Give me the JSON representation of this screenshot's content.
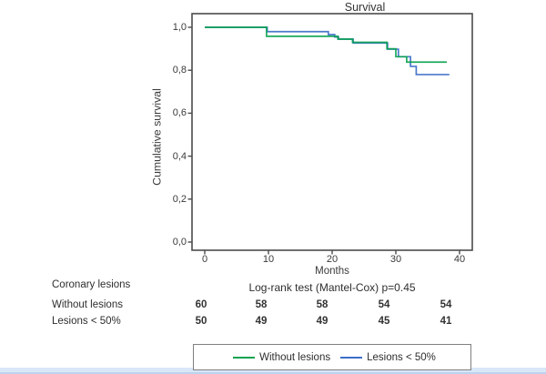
{
  "title": "Survival",
  "axes": {
    "y_label": "Cumulative survival",
    "x_label": "Months",
    "y_tick_labels": [
      "1,0",
      "0,8",
      "0,6",
      "0,4",
      "0,2",
      "0,0"
    ],
    "x_tick_labels": [
      "0",
      "10",
      "20",
      "30",
      "40"
    ]
  },
  "stats_line": "Log-rank test (Mantel-Cox) p=0.45",
  "risk_table": {
    "group_header": "Coronary lesions",
    "rows": [
      {
        "label": "Without lesions",
        "counts": [
          "60",
          "58",
          "58",
          "54",
          "54"
        ]
      },
      {
        "label": "Lesions < 50%",
        "counts": [
          "50",
          "49",
          "49",
          "45",
          "41"
        ]
      }
    ]
  },
  "colors": {
    "green_series": "#0aa24f",
    "blue_series": "#3c6ec8",
    "axis": "#4b4b4b",
    "strip": "#d9e7f8"
  },
  "chart_data": {
    "type": "line",
    "subtype": "kaplan-meier-step",
    "title": "Survival",
    "xlabel": "Months",
    "ylabel": "Cumulative survival",
    "xlim": [
      -2,
      42
    ],
    "ylim": [
      -0.05,
      1.06
    ],
    "x_ticks": [
      0,
      10,
      20,
      30,
      40
    ],
    "y_ticks": [
      1.0,
      0.8,
      0.6,
      0.4,
      0.2,
      0.0
    ],
    "grid": false,
    "legend_position": "bottom",
    "annotation": "Log-rank test (Mantel-Cox) p=0.45",
    "numbers_at_risk": {
      "header": "Coronary lesions",
      "times": [
        0,
        10,
        20,
        30,
        40
      ],
      "groups": [
        {
          "name": "Without lesions",
          "counts": [
            60,
            58,
            58,
            54,
            54
          ]
        },
        {
          "name": "Lesions < 50%",
          "counts": [
            50,
            49,
            49,
            45,
            41
          ]
        }
      ]
    },
    "series": [
      {
        "name": "Without lesions",
        "color": "#0aa24f",
        "start": [
          0,
          1.0
        ],
        "steps": [
          [
            9.7,
            0.958
          ],
          [
            20.9,
            0.945
          ],
          [
            23.2,
            0.93
          ],
          [
            28.6,
            0.9
          ],
          [
            30.0,
            0.863
          ],
          [
            31.7,
            0.838
          ]
        ],
        "end_month": 38.0
      },
      {
        "name": "Lesions < 50%",
        "color": "#3c6ec8",
        "start": [
          0,
          1.0
        ],
        "steps": [
          [
            9.8,
            0.98
          ],
          [
            19.4,
            0.966
          ],
          [
            20.4,
            0.955
          ],
          [
            21.0,
            0.945
          ],
          [
            23.3,
            0.927
          ],
          [
            28.7,
            0.898
          ],
          [
            30.4,
            0.863
          ],
          [
            32.3,
            0.818
          ],
          [
            33.2,
            0.78
          ]
        ],
        "end_month": 38.4
      }
    ]
  }
}
